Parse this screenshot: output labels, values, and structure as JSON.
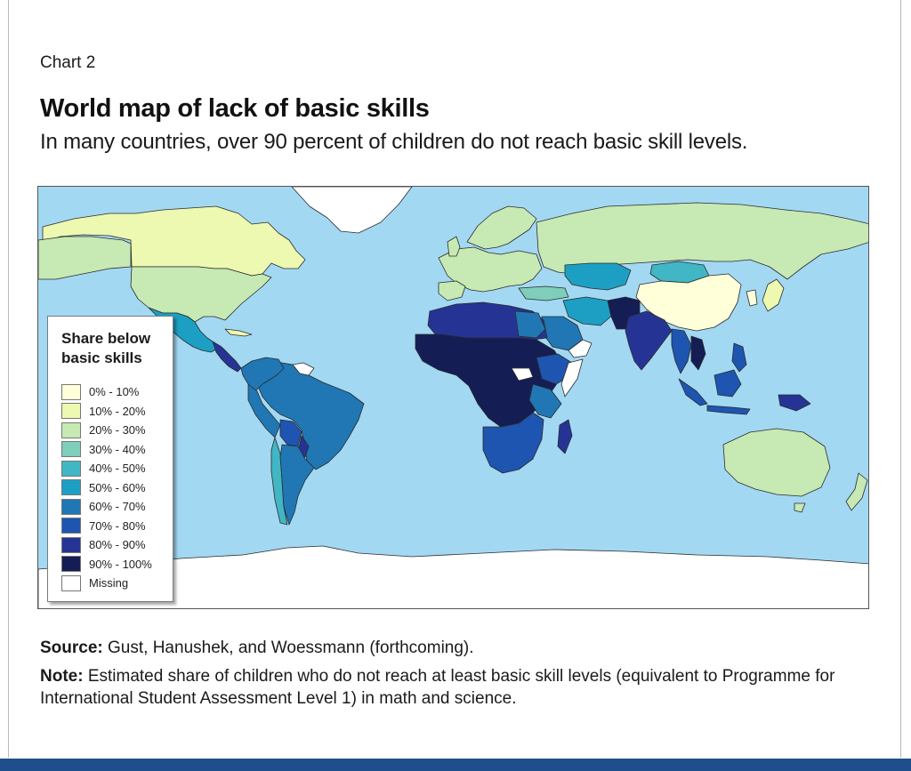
{
  "header": {
    "kicker": "Chart 2",
    "title": "World map of lack of basic skills",
    "subtitle": "In many countries, over 90 percent of children do not reach basic skill levels."
  },
  "legend": {
    "title": "Share below basic skills",
    "items": [
      {
        "label": "0% - 10%",
        "color": "#ffffd9"
      },
      {
        "label": "10% - 20%",
        "color": "#edf8b1"
      },
      {
        "label": "20% - 30%",
        "color": "#c7e9b4"
      },
      {
        "label": "30% - 40%",
        "color": "#7fcdbb"
      },
      {
        "label": "40% - 50%",
        "color": "#41b6c4"
      },
      {
        "label": "50% - 60%",
        "color": "#1d9fc4"
      },
      {
        "label": "60% - 70%",
        "color": "#2077b4"
      },
      {
        "label": "70% - 80%",
        "color": "#1d55b0"
      },
      {
        "label": "80% - 90%",
        "color": "#253494"
      },
      {
        "label": "90% - 100%",
        "color": "#151d55"
      },
      {
        "label": "Missing",
        "color": "#ffffff"
      }
    ]
  },
  "map": {
    "ocean_color": "#a3d8f3"
  },
  "footer": {
    "source_label": "Source:",
    "source_text": " Gust, Hanushek, and Woessmann (forthcoming).",
    "note_label": "Note:",
    "note_text": " Estimated share of children who do not reach at least basic skill levels (equivalent to Programme for International Student Assessment Level 1) in math and science."
  }
}
